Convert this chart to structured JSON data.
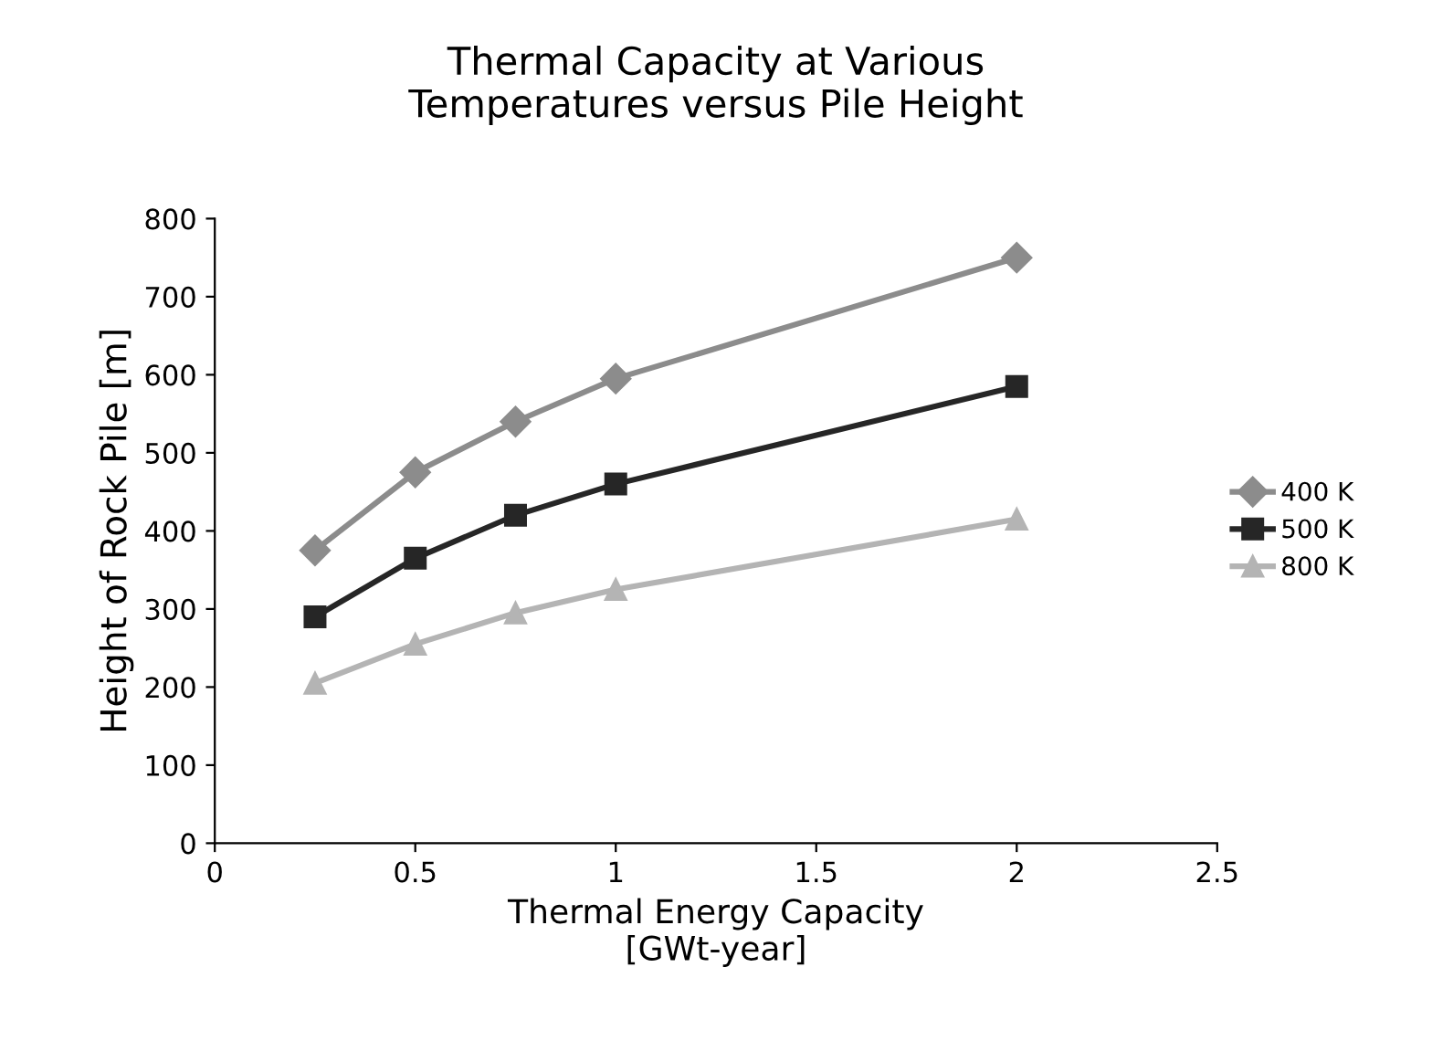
{
  "chart_data": {
    "type": "line",
    "title": "Thermal Capacity at Various\nTemperatures versus Pile Height",
    "xlabel": "Thermal Energy Capacity\n[GWt-year]",
    "ylabel": "Height of Rock Pile [m]",
    "x": [
      0.25,
      0.5,
      0.75,
      1,
      2
    ],
    "series": [
      {
        "name": "400 K",
        "color": "#8c8c8c",
        "marker": "diamond",
        "values": [
          375,
          475,
          540,
          595,
          750
        ]
      },
      {
        "name": "500 K",
        "color": "#262626",
        "marker": "square",
        "values": [
          290,
          365,
          420,
          460,
          585
        ]
      },
      {
        "name": "800 K",
        "color": "#b4b4b4",
        "marker": "triangle",
        "values": [
          205,
          255,
          295,
          325,
          415
        ]
      }
    ],
    "xlim": [
      0,
      2.5
    ],
    "xticks": [
      0,
      0.5,
      1,
      1.5,
      2,
      2.5
    ],
    "ylim": [
      0,
      800
    ],
    "yticks": [
      0,
      100,
      200,
      300,
      400,
      500,
      600,
      700,
      800
    ],
    "grid": false,
    "legend": "right",
    "line_style": "solid"
  }
}
